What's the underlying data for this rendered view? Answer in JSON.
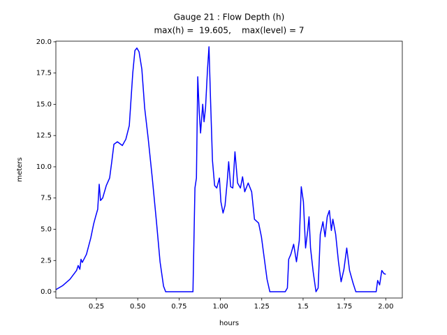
{
  "chart_data": {
    "type": "line",
    "title": "Gauge 21 : Flow Depth (h)",
    "subtitle": "max(h) =  19.605,    max(level) = 7",
    "x_label": "hours",
    "y_label": "meters",
    "xlim": [
      0.005,
      2.1
    ],
    "ylim": [
      -0.5,
      20.05
    ],
    "xticks": [
      0.25,
      {
        "value": 0.5,
        "label": "0.50"
      },
      0.75,
      {
        "value": 1,
        "label": "1.00"
      },
      1.25,
      1.5,
      1.75,
      {
        "value": 2,
        "label": "2.00"
      }
    ],
    "yticks": [
      {
        "value": 0,
        "label": "0.0"
      },
      2.5,
      {
        "value": 5,
        "label": "5.0"
      },
      7.5,
      {
        "value": 10,
        "label": "10.0"
      },
      12.5,
      {
        "value": 15,
        "label": "15.0"
      },
      17.5,
      {
        "value": 20,
        "label": "20.0"
      }
    ],
    "grid": false,
    "series": [
      {
        "name": "h",
        "color": "#0000ff",
        "x": [
          0.005,
          0.047,
          0.09,
          0.13,
          0.14,
          0.15,
          0.157,
          0.165,
          0.19,
          0.216,
          0.233,
          0.245,
          0.258,
          0.267,
          0.275,
          0.288,
          0.31,
          0.33,
          0.343,
          0.356,
          0.377,
          0.407,
          0.428,
          0.449,
          0.47,
          0.483,
          0.495,
          0.508,
          0.525,
          0.542,
          0.563,
          0.588,
          0.614,
          0.635,
          0.656,
          0.669,
          0.834,
          0.846,
          0.855,
          0.863,
          0.872,
          0.88,
          0.893,
          0.901,
          0.91,
          0.922,
          0.931,
          0.94,
          0.952,
          0.965,
          0.978,
          0.994,
          1.003,
          1.016,
          1.028,
          1.041,
          1.05,
          1.062,
          1.075,
          1.088,
          1.104,
          1.121,
          1.134,
          1.147,
          1.168,
          1.189,
          1.206,
          1.231,
          1.248,
          1.265,
          1.282,
          1.299,
          1.392,
          1.405,
          1.413,
          1.426,
          1.443,
          1.46,
          1.477,
          1.489,
          1.502,
          1.515,
          1.528,
          1.536,
          1.545,
          1.561,
          1.578,
          1.591,
          1.604,
          1.62,
          1.633,
          1.646,
          1.659,
          1.671,
          1.68,
          1.697,
          1.714,
          1.73,
          1.747,
          1.764,
          1.781,
          1.802,
          1.819,
          1.942,
          1.951,
          1.963,
          1.976,
          1.989,
          2.0
        ],
        "values": [
          0.17,
          0.5,
          1.0,
          1.7,
          2.1,
          1.8,
          2.6,
          2.35,
          3.0,
          4.3,
          5.4,
          6.0,
          6.6,
          8.6,
          7.3,
          7.5,
          8.5,
          9.1,
          10.4,
          11.8,
          12.0,
          11.7,
          12.2,
          13.3,
          17.5,
          19.3,
          19.5,
          19.2,
          17.8,
          14.7,
          12.3,
          9.1,
          5.5,
          2.4,
          0.45,
          0,
          0,
          8.3,
          9.1,
          17.2,
          14.4,
          12.7,
          15.0,
          13.6,
          14.7,
          17.8,
          19.605,
          15.5,
          10.5,
          8.5,
          8.3,
          9.1,
          7.2,
          6.3,
          6.9,
          8.8,
          10.4,
          8.4,
          8.3,
          11.2,
          8.7,
          8.3,
          9.2,
          8.0,
          8.7,
          8.0,
          5.8,
          5.5,
          4.4,
          2.7,
          1.0,
          0,
          0,
          0.3,
          2.6,
          3.0,
          3.8,
          2.4,
          4.1,
          8.4,
          7.2,
          3.5,
          4.9,
          6.0,
          3.5,
          1.6,
          0,
          0.3,
          4.6,
          5.6,
          4.4,
          6.0,
          6.5,
          4.9,
          5.8,
          4.6,
          2.4,
          0.8,
          1.8,
          3.5,
          1.7,
          0.7,
          0,
          0,
          0.9,
          0.55,
          1.7,
          1.45,
          1.4
        ]
      }
    ]
  }
}
